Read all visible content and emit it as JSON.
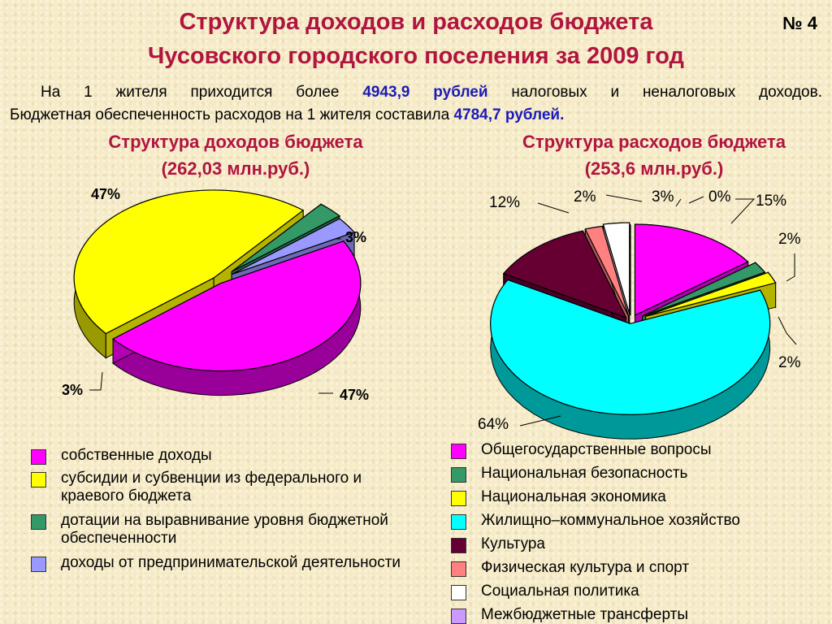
{
  "header": {
    "title_line1": "Структура доходов и расходов бюджета",
    "title_line2": "Чусовского городского поселения за 2009 год",
    "slide_number": "№ 4"
  },
  "intro": {
    "p1_a": "На 1 жителя приходится более ",
    "p1_value": "4943,9 рублей",
    "p1_b": " налоговых и неналоговых доходов.",
    "p2_a": "Бюджетная обеспеченность расходов на 1 жителя составила ",
    "p2_value": "4784,7 рублей."
  },
  "chart_data": [
    {
      "type": "pie",
      "title": "Структура доходов бюджета",
      "subtitle": "(262,03 млн.руб.)",
      "categories": [
        "собственные доходы",
        "субсидии и субвенции из федерального и краевого бюджета",
        "дотации на выравнивание уровня бюджетной обеспеченности",
        "доходы от предпринимательской деятельности"
      ],
      "values": [
        47,
        47,
        3,
        3
      ],
      "labels": [
        "47%",
        "47%",
        "3%",
        "3%"
      ],
      "colors": [
        "#ff00ff",
        "#ffff00",
        "#339966",
        "#9999ff"
      ],
      "legend_placement": "bottom"
    },
    {
      "type": "pie",
      "title": "Структура расходов бюджета",
      "subtitle": "(253,6 млн.руб.)",
      "categories": [
        "Общегосударственные вопросы",
        "Национальная безопасность",
        "Национальная экономика",
        "Жилищно–коммунальное хозяйство",
        "Культура",
        "Физическая культура и спорт",
        "Социальная политика",
        "Межбюджетные трансферты"
      ],
      "values": [
        15,
        2,
        2,
        64,
        12,
        2,
        3,
        0
      ],
      "labels": [
        "15%",
        "2%",
        "2%",
        "64%",
        "12%",
        "2%",
        "3%",
        "0%"
      ],
      "colors": [
        "#ff00ff",
        "#339966",
        "#ffff00",
        "#00ffff",
        "#660033",
        "#ff8080",
        "#ffffff",
        "#cc99ff"
      ],
      "legend_placement": "bottom"
    }
  ]
}
